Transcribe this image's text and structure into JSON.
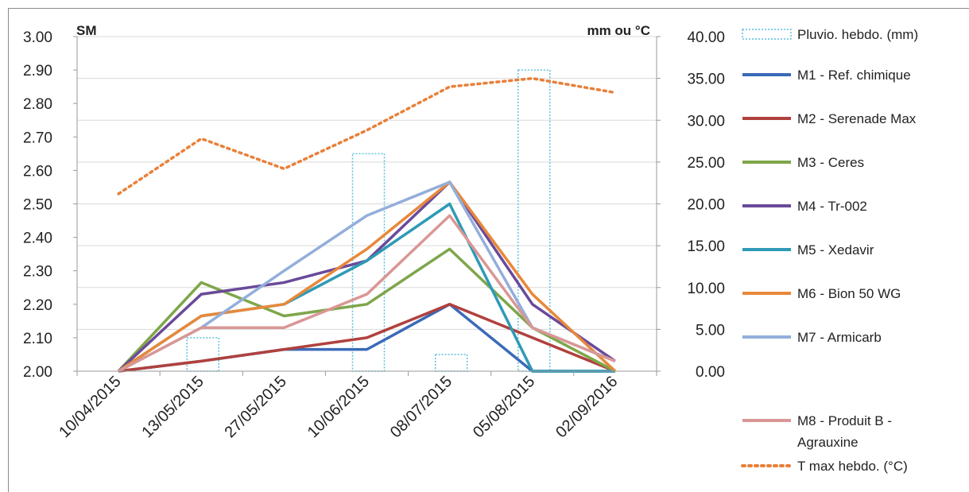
{
  "chart_data": {
    "type": "line",
    "left_axis_label": "SM",
    "right_axis_label": "mm ou °C",
    "left_ticks": [
      "3.00",
      "2.90",
      "2.80",
      "2.70",
      "2.60",
      "2.50",
      "2.40",
      "2.30",
      "2.20",
      "2.10",
      "2.00"
    ],
    "right_ticks": [
      "40.00",
      "35.00",
      "30.00",
      "25.00",
      "20.00",
      "15.00",
      "10.00",
      "5.00",
      "0.00"
    ],
    "ylim_left": [
      2.0,
      3.0
    ],
    "ylim_right": [
      0,
      40
    ],
    "categories": [
      "10/04/2015",
      "13/05/2015",
      "27/05/2015",
      "10/06/2015",
      "08/07/2015",
      "05/08/2015",
      "02/09/2016"
    ],
    "bars": {
      "name": "Pluvio. hebdo. (mm)",
      "color": "#5bc0de",
      "values": [
        0,
        4,
        0,
        26,
        2,
        36,
        0
      ]
    },
    "temperature": {
      "name": "T max hebdo. (°C)",
      "color": "#e8803a",
      "values": [
        21.2,
        27.8,
        24.2,
        28.8,
        34,
        35,
        33.3
      ]
    },
    "series": [
      {
        "name": "M1 - Ref. chimique",
        "color": "#3a6ab8",
        "values": [
          2.0,
          2.03,
          2.065,
          2.065,
          2.2,
          2.0,
          2.0
        ]
      },
      {
        "name": "M2 - Serenade Max",
        "color": "#b0413e",
        "values": [
          2.0,
          2.03,
          2.065,
          2.1,
          2.2,
          2.1,
          2.0
        ]
      },
      {
        "name": "M3 - Ceres",
        "color": "#7ea64a",
        "values": [
          2.0,
          2.265,
          2.165,
          2.2,
          2.365,
          2.13,
          2.0
        ]
      },
      {
        "name": "M4 - Tr-002",
        "color": "#6a4a9a",
        "values": [
          2.0,
          2.23,
          2.265,
          2.33,
          2.565,
          2.2,
          2.03
        ]
      },
      {
        "name": "M5 - Xedavir",
        "color": "#2f9ab5",
        "values": [
          2.0,
          2.165,
          2.2,
          2.33,
          2.5,
          2.0,
          2.0
        ]
      },
      {
        "name": "M6 - Bion 50 WG",
        "color": "#e8883a",
        "values": [
          2.0,
          2.165,
          2.2,
          2.365,
          2.565,
          2.23,
          2.0
        ]
      },
      {
        "name": "M7 - Armicarb",
        "color": "#93aedb",
        "values": [
          2.0,
          2.13,
          2.3,
          2.465,
          2.565,
          2.13,
          2.03
        ]
      },
      {
        "name": "M8 - Produit B - Agrauxine",
        "color": "#d99795",
        "values": [
          2.0,
          2.13,
          2.13,
          2.23,
          2.465,
          2.13,
          2.03
        ]
      }
    ],
    "legend_placement": "right"
  }
}
